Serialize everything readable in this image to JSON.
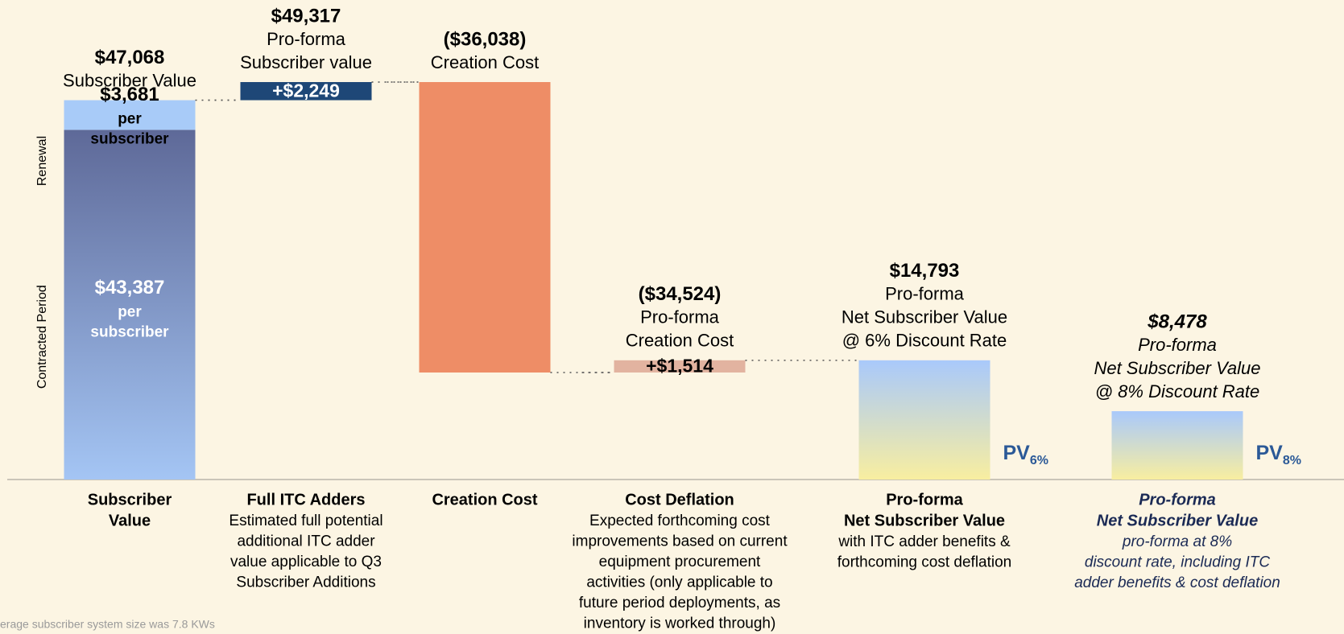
{
  "chart_data": {
    "type": "waterfall",
    "items": [
      {
        "kind": "stack",
        "header": [
          "$47,068",
          "Subscriber Value"
        ],
        "segments": [
          {
            "name": "Contracted Period",
            "value": 43387,
            "value_label": "$43,387",
            "note": [
              "per",
              "subscriber"
            ],
            "color": "#a4c5f4",
            "color_top": "#5e6998",
            "text_color": "#ffffff"
          },
          {
            "name": "Renewal",
            "value": 3681,
            "value_label": "$3,681",
            "note": [
              "per",
              "subscriber"
            ],
            "color": "#a8cbf8",
            "text_color": "#000000"
          }
        ],
        "label_lines": [
          "Subscriber",
          "Value"
        ],
        "description": []
      },
      {
        "kind": "delta",
        "header": [
          "$49,317",
          "Pro-forma",
          "Subscriber value"
        ],
        "value": 2249,
        "value_label": "+$2,249",
        "color": "#1e4777",
        "text_color": "#ffffff",
        "label_lines": [
          "Full ITC Adders"
        ],
        "description": [
          "Estimated full potential",
          "additional ITC adder",
          "value applicable to Q3",
          "Subscriber Additions"
        ]
      },
      {
        "kind": "delta",
        "header": [
          "($36,038)",
          "Creation Cost"
        ],
        "value": -36038,
        "color": "#ee8d66",
        "label_lines": [
          "Creation Cost"
        ],
        "description": []
      },
      {
        "kind": "delta",
        "header": [
          "($34,524)",
          "Pro-forma",
          "Creation Cost"
        ],
        "value": 1514,
        "value_label": "+$1,514",
        "color": "#e2b3a0",
        "text_color": "#000000",
        "label_lines": [
          "Cost Deflation"
        ],
        "description": [
          "Expected forthcoming cost",
          "improvements based on current",
          "equipment procurement",
          "activities (only applicable to",
          "future period deployments, as",
          "inventory is worked through)"
        ]
      },
      {
        "kind": "total",
        "header": [
          "$14,793",
          "Pro-forma",
          "Net Subscriber Value",
          "@ 6% Discount Rate"
        ],
        "value": 14793,
        "color": "#f8eea0",
        "color_top": "#a9c9fb",
        "pv": {
          "label": "PV",
          "sub": "6%"
        },
        "label_lines": [
          "Pro-forma",
          "Net Subscriber Value"
        ],
        "description": [
          "with ITC adder benefits &",
          "forthcoming cost deflation"
        ]
      },
      {
        "kind": "total",
        "italic": true,
        "header": [
          "$8,478",
          "Pro-forma",
          "Net Subscriber Value",
          "@ 8% Discount Rate"
        ],
        "value": 8478,
        "color": "#f8eea0",
        "color_top": "#a9c9fb",
        "pv": {
          "label": "PV",
          "sub": "8%"
        },
        "label_lines": [
          "Pro-forma",
          "Net Subscriber Value"
        ],
        "description": [
          "pro-forma at 8%",
          "discount rate, including ITC",
          "adder benefits & cost deflation"
        ]
      }
    ],
    "footnote": "erage subscriber system size was 7.8 KWs"
  }
}
